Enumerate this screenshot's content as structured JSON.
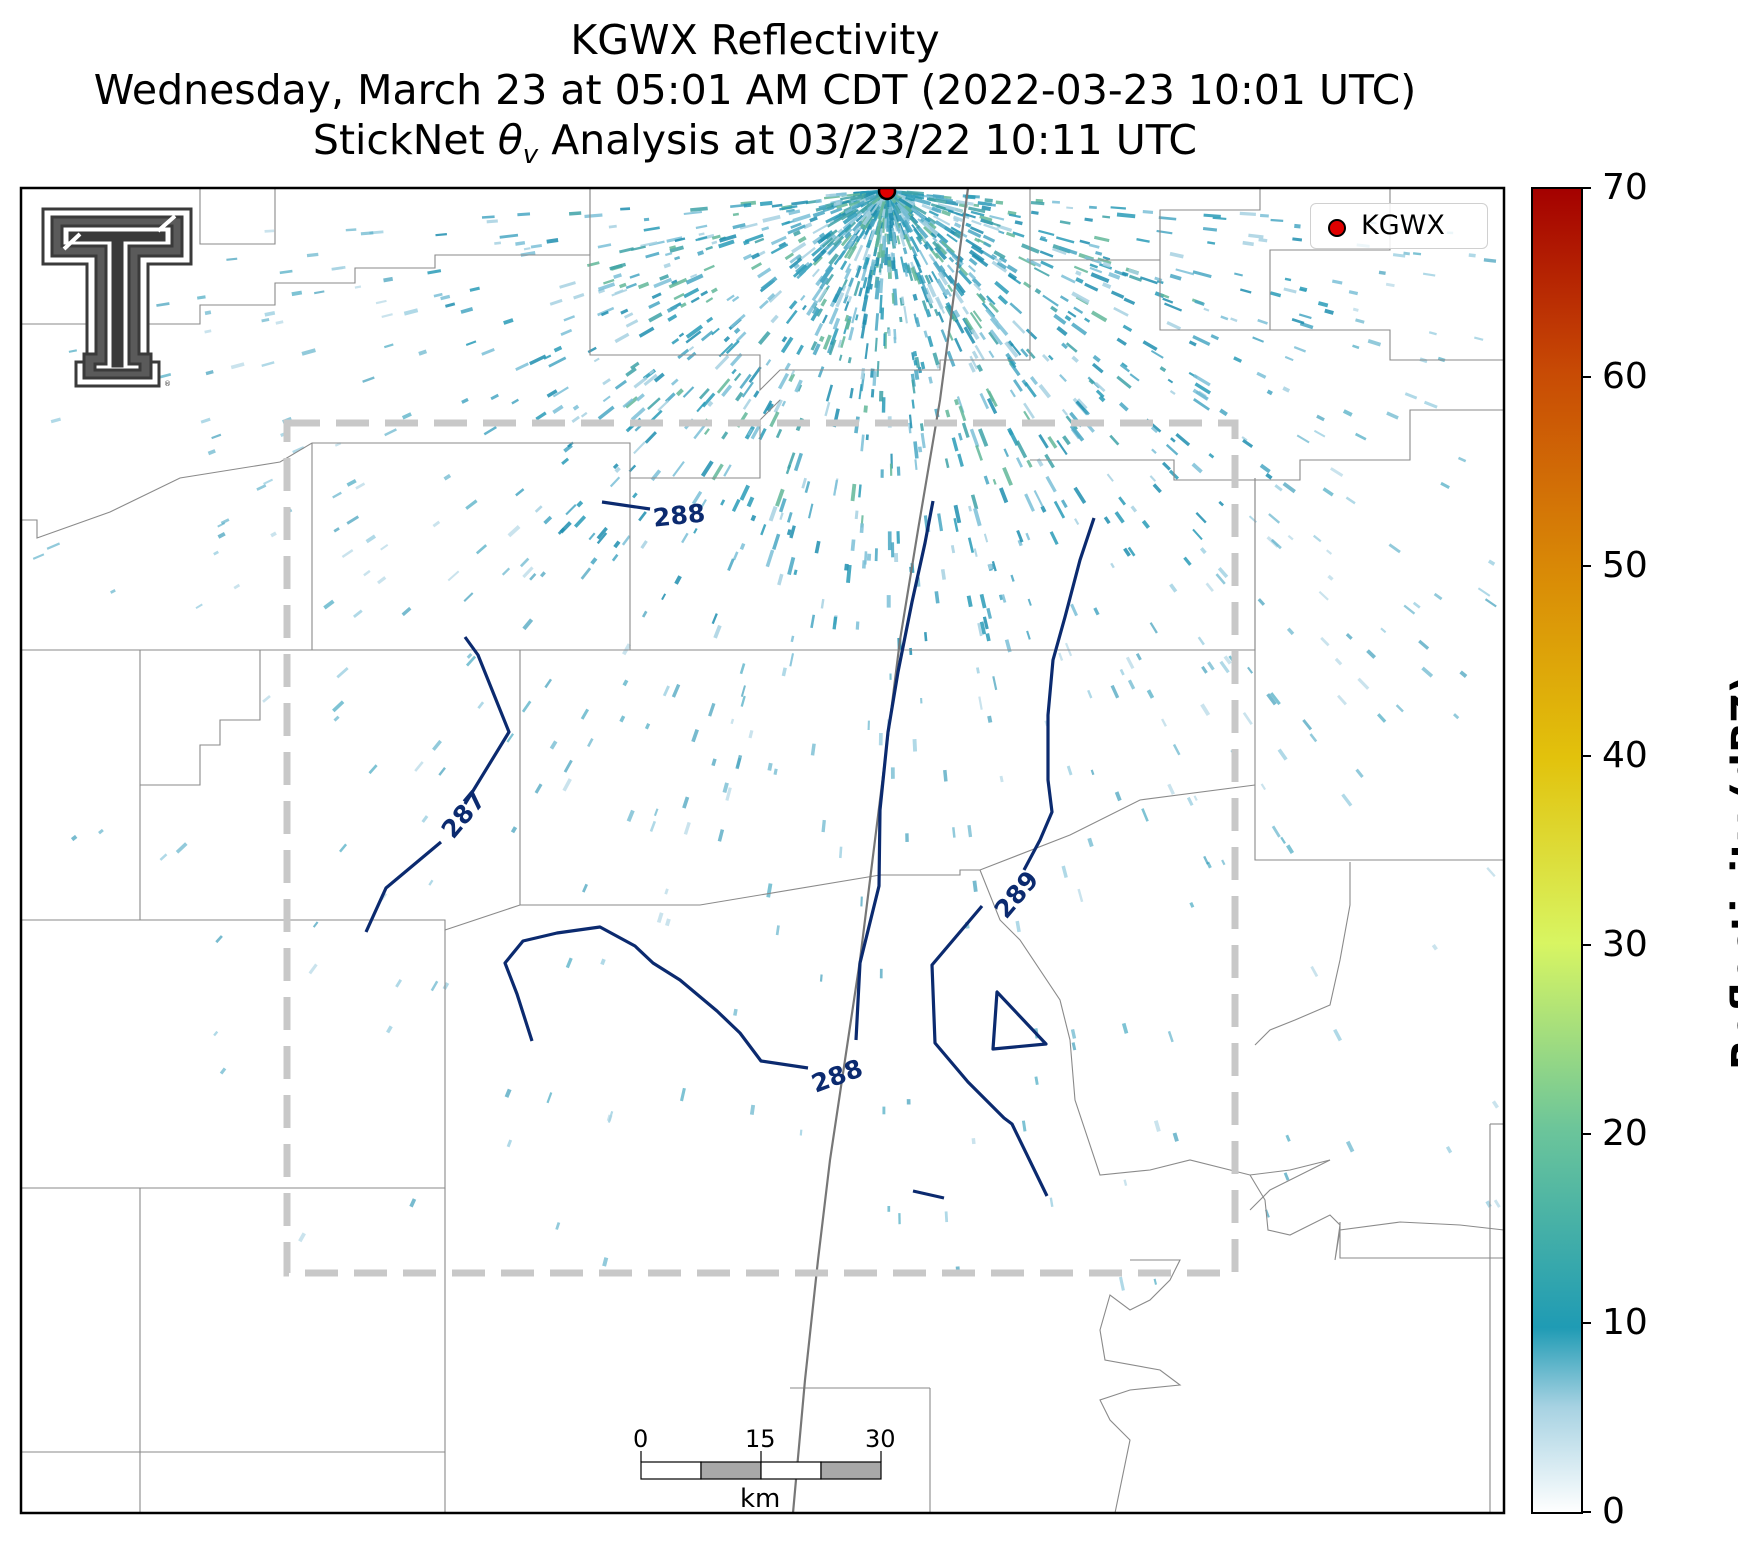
{
  "title": {
    "line1": "KGWX Reflectivity",
    "line2": "Wednesday, March 23 at 05:01 AM CDT (2022-03-23 10:01 UTC)",
    "line3_prefix": "StickNet ",
    "line3_symbol": "θ",
    "line3_subscript": "v",
    "line3_suffix": " Analysis at 03/23/22 10:11 UTC"
  },
  "legend": {
    "label": "KGWX"
  },
  "radar": {
    "name": "KGWX",
    "color": "#e00000"
  },
  "colorbar": {
    "label": "Reflectivity (dBZ)",
    "ticks": [
      "70",
      "60",
      "50",
      "40",
      "30",
      "20",
      "10",
      "0"
    ],
    "range": [
      0,
      70
    ],
    "colors": [
      "#ffffff",
      "#1f9bb4",
      "#6cc59a",
      "#d8f562",
      "#e2c20c",
      "#d98a06",
      "#c84b05",
      "#a40000"
    ]
  },
  "contours": {
    "color": "#0b2a6f",
    "labels": [
      "288",
      "287",
      "288",
      "289"
    ]
  },
  "scale_bar": {
    "ticks": [
      "0",
      "15",
      "30"
    ],
    "unit": "km"
  },
  "styles": {
    "analysis_box_color": "#c8c8c8",
    "boundary_color": "#8a8a8a",
    "echo_color": "#2a9cb8"
  }
}
